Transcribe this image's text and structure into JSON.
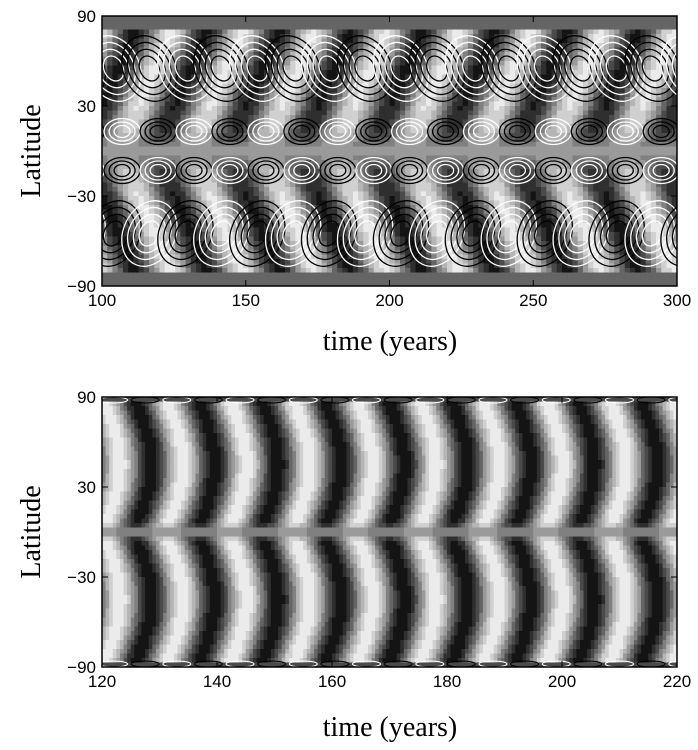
{
  "chart_data": [
    {
      "type": "heatmap",
      "title": "",
      "xlabel": "time (years)",
      "ylabel": "Latitude",
      "xlim": [
        100,
        300
      ],
      "ylim": [
        -90,
        90
      ],
      "xticks": [
        100,
        150,
        200,
        250,
        300
      ],
      "yticks": [
        90,
        30,
        -30,
        -90
      ],
      "colormap": "grayscale",
      "grid": false,
      "cycle_period_years": 25,
      "overlay_contours": [
        {
          "color": "#ffffff",
          "style": "solid"
        },
        {
          "color": "#000000",
          "style": "solid"
        }
      ]
    },
    {
      "type": "heatmap",
      "title": "",
      "xlabel": "time (years)",
      "ylabel": "Latitude",
      "xlim": [
        120,
        220
      ],
      "ylim": [
        -90,
        90
      ],
      "xticks": [
        120,
        140,
        160,
        180,
        200,
        220
      ],
      "yticks": [
        90,
        30,
        -30,
        -90
      ],
      "colormap": "grayscale",
      "grid": false,
      "cycle_period_years": 11
    }
  ]
}
